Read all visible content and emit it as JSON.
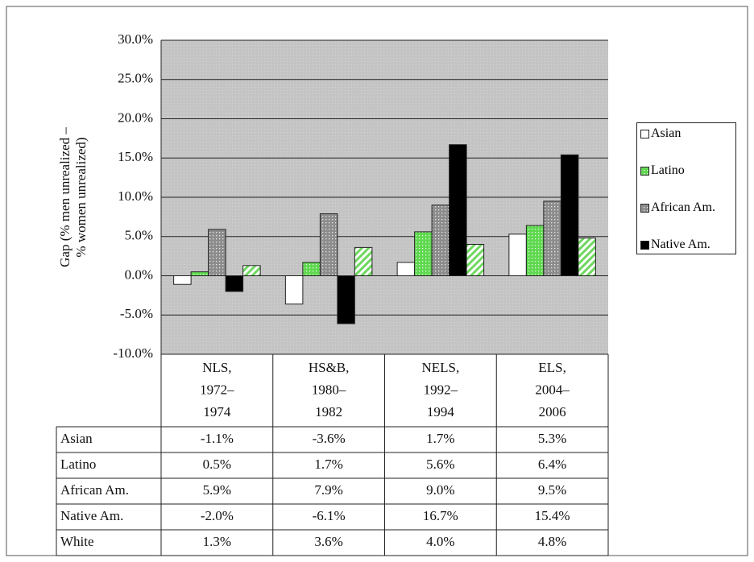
{
  "chart_data": {
    "type": "bar",
    "ylabel": [
      "Gap (% men unrealized –",
      "% women unrealized)"
    ],
    "categories": [
      [
        "NLS,",
        "1972–",
        "1974"
      ],
      [
        "HS&B,",
        "1980–",
        "1982"
      ],
      [
        "NELS,",
        "1992–",
        "1994"
      ],
      [
        "ELS,",
        "2004–",
        "2006"
      ]
    ],
    "series": [
      {
        "name": "Asian",
        "color": "#ffffff",
        "pattern": "solid",
        "in_legend": true,
        "values": [
          -1.1,
          -3.6,
          1.7,
          5.3
        ],
        "value_labels": [
          "-1.1%",
          "-3.6%",
          "1.7%",
          "5.3%"
        ]
      },
      {
        "name": "Latino",
        "color": "#5fd84f",
        "pattern": "dots",
        "in_legend": true,
        "values": [
          0.5,
          1.7,
          5.6,
          6.4
        ],
        "value_labels": [
          "0.5%",
          "1.7%",
          "5.6%",
          "6.4%"
        ]
      },
      {
        "name": "African Am.",
        "color": "#8c8c8c",
        "pattern": "dots",
        "in_legend": true,
        "values": [
          5.9,
          7.9,
          9.0,
          9.5
        ],
        "value_labels": [
          "5.9%",
          "7.9%",
          "9.0%",
          "9.5%"
        ]
      },
      {
        "name": "Native Am.",
        "color": "#000000",
        "pattern": "solid",
        "in_legend": true,
        "values": [
          -2.0,
          -6.1,
          16.7,
          15.4
        ],
        "value_labels": [
          "-2.0%",
          "-6.1%",
          "16.7%",
          "15.4%"
        ]
      },
      {
        "name": "White",
        "color": "#6fd860",
        "pattern": "hatch",
        "in_legend": false,
        "values": [
          1.3,
          3.6,
          4.0,
          4.8
        ],
        "value_labels": [
          "1.3%",
          "3.6%",
          "4.0%",
          "4.8%"
        ]
      }
    ],
    "ylim": [
      -10,
      30
    ],
    "yticks": [
      {
        "value": -10,
        "label": "-10.0%"
      },
      {
        "value": -5,
        "label": "-5.0%"
      },
      {
        "value": 0,
        "label": "0.0%"
      },
      {
        "value": 5,
        "label": "5.0%"
      },
      {
        "value": 10,
        "label": "10.0%"
      },
      {
        "value": 15,
        "label": "15.0%"
      },
      {
        "value": 20,
        "label": "20.0%"
      },
      {
        "value": 25,
        "label": "25.0%"
      },
      {
        "value": 30,
        "label": "30.0%"
      }
    ],
    "grid": true
  }
}
